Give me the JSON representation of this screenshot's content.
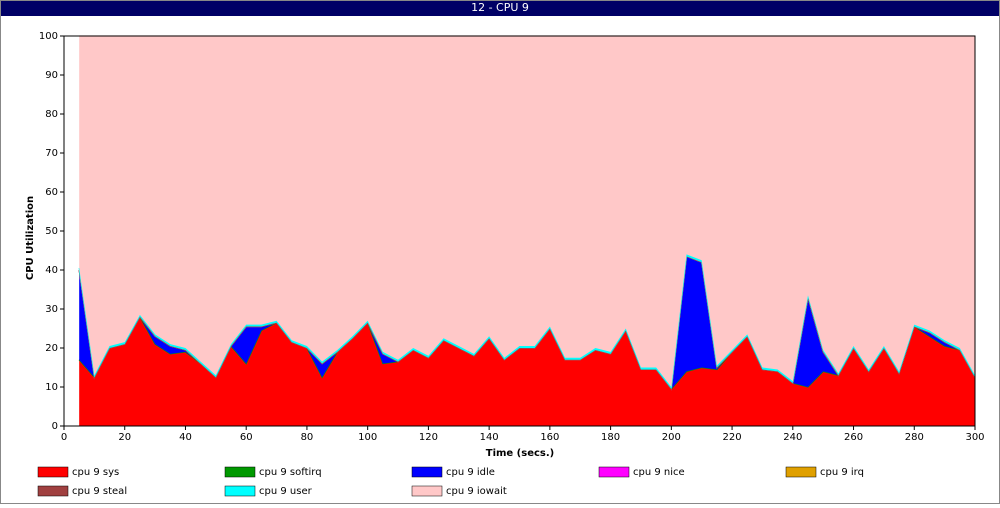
{
  "chart_data": {
    "type": "stacked-area",
    "title": "12 - CPU 9",
    "xlabel": "Time (secs.)",
    "ylabel": "CPU Utilization",
    "xlim": [
      0,
      300
    ],
    "ylim": [
      0,
      100
    ],
    "xticks": [
      0,
      20,
      40,
      60,
      80,
      100,
      120,
      140,
      160,
      180,
      200,
      220,
      240,
      260,
      280,
      300
    ],
    "yticks": [
      0,
      10,
      20,
      30,
      40,
      50,
      60,
      70,
      80,
      90,
      100
    ],
    "x": [
      5,
      10,
      15,
      20,
      25,
      30,
      35,
      40,
      45,
      50,
      55,
      60,
      65,
      70,
      75,
      80,
      85,
      90,
      95,
      100,
      105,
      110,
      115,
      120,
      125,
      130,
      135,
      140,
      145,
      150,
      155,
      160,
      165,
      170,
      175,
      180,
      185,
      190,
      195,
      200,
      205,
      210,
      215,
      220,
      225,
      230,
      235,
      240,
      245,
      250,
      255,
      260,
      265,
      270,
      275,
      280,
      285,
      290,
      295,
      300
    ],
    "series": [
      {
        "name": "cpu 9 sys",
        "color": "#ff0000",
        "values": [
          17,
          12.5,
          20,
          21,
          28,
          21,
          18.5,
          19,
          16,
          12.5,
          20.5,
          16,
          24.5,
          26.5,
          21.5,
          20,
          12.5,
          19,
          22.5,
          26.5,
          16,
          16.5,
          19.5,
          17.5,
          22,
          20,
          18,
          22.5,
          17,
          20,
          20,
          25,
          17,
          17,
          19.5,
          18.5,
          24.5,
          14.5,
          14.5,
          9.5,
          14,
          15,
          14.5,
          19,
          23,
          14.5,
          14,
          11,
          10,
          14,
          13,
          20,
          14,
          20,
          13.5,
          25.5,
          23,
          20.5,
          19.5,
          12.5
        ]
      },
      {
        "name": "cpu 9 softirq",
        "color": "#009900",
        "values": [
          0,
          0,
          0,
          0,
          0,
          0,
          0,
          0,
          0,
          0,
          0,
          0,
          0,
          0,
          0,
          0,
          0,
          0,
          0,
          0,
          0,
          0,
          0,
          0,
          0,
          0,
          0,
          0,
          0,
          0,
          0,
          0,
          0,
          0,
          0,
          0,
          0,
          0,
          0,
          0,
          0,
          0,
          0,
          0,
          0,
          0,
          0,
          0,
          0,
          0,
          0,
          0,
          0,
          0,
          0,
          0,
          0,
          0,
          0,
          0
        ]
      },
      {
        "name": "cpu 9 idle",
        "color": "#0000ff",
        "values": [
          23,
          0,
          0,
          0,
          0,
          2,
          2,
          0.5,
          0,
          0,
          0,
          9.5,
          1,
          0,
          0,
          0,
          3.5,
          0,
          0,
          0,
          2.5,
          0,
          0,
          0,
          0,
          0,
          0,
          0,
          0,
          0,
          0,
          0,
          0,
          0,
          0,
          0,
          0,
          0,
          0,
          0,
          29.5,
          27,
          0.5,
          0,
          0,
          0,
          0,
          0,
          23,
          5,
          0,
          0,
          0,
          0,
          0,
          0,
          1,
          1,
          0,
          0
        ]
      },
      {
        "name": "cpu 9 nice",
        "color": "#ff00ff",
        "values": [
          0,
          0,
          0,
          0,
          0,
          0,
          0,
          0,
          0,
          0,
          0,
          0,
          0,
          0,
          0,
          0,
          0,
          0,
          0,
          0,
          0,
          0,
          0,
          0,
          0,
          0,
          0,
          0,
          0,
          0,
          0,
          0,
          0,
          0,
          0,
          0,
          0,
          0,
          0,
          0,
          0,
          0,
          0,
          0,
          0,
          0,
          0,
          0,
          0,
          0,
          0,
          0,
          0,
          0,
          0,
          0,
          0,
          0,
          0,
          0
        ]
      },
      {
        "name": "cpu 9 irq",
        "color": "#e0a000",
        "values": [
          0,
          0,
          0,
          0,
          0,
          0,
          0,
          0,
          0,
          0,
          0,
          0,
          0,
          0,
          0,
          0,
          0,
          0,
          0,
          0,
          0,
          0,
          0,
          0,
          0,
          0,
          0,
          0,
          0,
          0,
          0,
          0,
          0,
          0,
          0,
          0,
          0,
          0,
          0,
          0,
          0,
          0,
          0,
          0,
          0,
          0,
          0,
          0,
          0,
          0,
          0,
          0,
          0,
          0,
          0,
          0,
          0,
          0,
          0,
          0
        ]
      },
      {
        "name": "cpu 9 steal",
        "color": "#a04040",
        "values": [
          0,
          0,
          0,
          0,
          0,
          0,
          0,
          0,
          0,
          0,
          0,
          0,
          0,
          0,
          0,
          0,
          0,
          0,
          0,
          0,
          0,
          0,
          0,
          0,
          0,
          0,
          0,
          0,
          0,
          0,
          0,
          0,
          0,
          0,
          0,
          0,
          0,
          0,
          0,
          0,
          0,
          0,
          0,
          0,
          0,
          0,
          0,
          0,
          0,
          0,
          0,
          0,
          0,
          0,
          0,
          0,
          0,
          0,
          0,
          0
        ]
      },
      {
        "name": "cpu 9 user",
        "color": "#00ffff",
        "values": [
          0.5,
          0.5,
          0.5,
          0.5,
          0.5,
          0.5,
          0.5,
          0.5,
          0.5,
          0.5,
          0.5,
          0.5,
          0.5,
          0.5,
          0.5,
          0.5,
          0.5,
          0.5,
          0.5,
          0.5,
          0.5,
          0.5,
          0.5,
          0.5,
          0.5,
          0.5,
          0.5,
          0.5,
          0.5,
          0.5,
          0.5,
          0.5,
          0.5,
          0.5,
          0.5,
          0.5,
          0.5,
          0.5,
          0.5,
          0.5,
          0.5,
          0.5,
          0.5,
          0.5,
          0.5,
          0.5,
          0.5,
          0.5,
          0.5,
          0.5,
          0.5,
          0.5,
          0.5,
          0.5,
          0.5,
          0.5,
          0.5,
          0.5,
          0.5,
          0.5
        ]
      },
      {
        "name": "cpu 9 iowait",
        "color": "#ffc8c8",
        "values": [
          59.5,
          87,
          79.5,
          78.5,
          71.5,
          76.5,
          79,
          80,
          83.5,
          87,
          79,
          74,
          74,
          73,
          78,
          79.5,
          83.5,
          80.5,
          77,
          73,
          81,
          83,
          80,
          82,
          77.5,
          79.5,
          81.5,
          77,
          82.5,
          79.5,
          79.5,
          74.5,
          82.5,
          82.5,
          80,
          81,
          75,
          85,
          85,
          90,
          56,
          57.5,
          84.5,
          80.5,
          76.5,
          85,
          85.5,
          88.5,
          66.5,
          80.5,
          86.5,
          79.5,
          85.5,
          79.5,
          86,
          74,
          75.5,
          78,
          80,
          87
        ]
      }
    ]
  }
}
